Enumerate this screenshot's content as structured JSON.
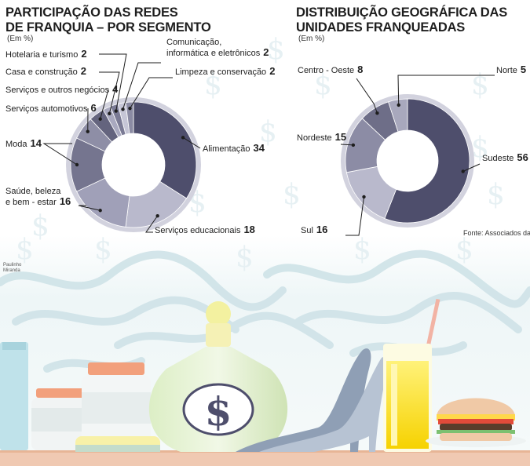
{
  "chart_data": [
    {
      "type": "pie",
      "title": "PARTICIPAÇÃO DAS REDES\nDE FRANQUIA – POR SEGMENTO",
      "subtitle": "(Em %)",
      "slices": [
        {
          "label": "Alimentação",
          "value": 34,
          "color": "#4e4e6c"
        },
        {
          "label": "Serviços educacionais",
          "value": 18,
          "color": "#b9b9cc"
        },
        {
          "label": "Saúde, beleza e bem-estar",
          "value": 16,
          "color": "#a0a0b8"
        },
        {
          "label": "Moda",
          "value": 14,
          "color": "#75758f"
        },
        {
          "label": "Serviços automotivos",
          "value": 6,
          "color": "#8e8ea6"
        },
        {
          "label": "Serviços e outros negócios",
          "value": 4,
          "color": "#64647e"
        },
        {
          "label": "Casa e construção",
          "value": 2,
          "color": "#a9a9bf"
        },
        {
          "label": "Hotelaria e turismo",
          "value": 2,
          "color": "#7b7b95"
        },
        {
          "label": "Comunicação, informática e eletrônicos",
          "value": 2,
          "color": "#c6c6d6"
        },
        {
          "label": "Limpeza e conservação",
          "value": 2,
          "color": "#8b8ba3"
        }
      ]
    },
    {
      "type": "pie",
      "title": "DISTRIBUIÇÃO GEOGRÁFICA DAS\nUNIDADES FRANQUEADAS",
      "subtitle": "(Em %)",
      "slices": [
        {
          "label": "Sudeste",
          "value": 56,
          "color": "#4e4e6c"
        },
        {
          "label": "Sul",
          "value": 16,
          "color": "#b9b9cc"
        },
        {
          "label": "Nordeste",
          "value": 15,
          "color": "#8c8ca5"
        },
        {
          "label": "Centro-Oeste",
          "value": 8,
          "color": "#6e6e88"
        },
        {
          "label": "Norte",
          "value": 5,
          "color": "#a8a8bd"
        }
      ]
    }
  ],
  "labels": {
    "hotelaria": {
      "name": "Hotelaria e turismo",
      "value": "2"
    },
    "casa": {
      "name": "Casa e construção",
      "value": "2"
    },
    "outros": {
      "name": "Serviços e outros negócios",
      "value": "4"
    },
    "automotivos": {
      "name": "Serviços automotivos",
      "value": "6"
    },
    "moda": {
      "name": "Moda",
      "value": "14"
    },
    "saude_1": {
      "name": "Saúde, beleza"
    },
    "saude_2": {
      "name": "e bem - estar",
      "value": "16"
    },
    "comunicacao_1": {
      "name": "Comunicação,"
    },
    "comunicacao_2": {
      "name": "informática e eletrônicos",
      "value": "2"
    },
    "limpeza": {
      "name": "Limpeza e conservação",
      "value": "2"
    },
    "alimentacao": {
      "name": "Alimentação",
      "value": "34"
    },
    "educacionais": {
      "name": "Serviços educacionais",
      "value": "18"
    },
    "centro_oeste": {
      "name": "Centro - Oeste",
      "value": "8"
    },
    "norte": {
      "name": "Norte",
      "value": "5"
    },
    "nordeste": {
      "name": "Nordeste",
      "value": "15"
    },
    "sudeste": {
      "name": "Sudeste",
      "value": "56"
    },
    "sul": {
      "name": "Sul",
      "value": "16"
    }
  },
  "source": "Fonte: Associados da ABF",
  "credit": {
    "line1": "Paulinho",
    "line2": "Miranda"
  },
  "bottle_symbol": "$",
  "colors": {
    "leader": "#1e1e1e",
    "dot": "#1e1e1e",
    "ring": "#d2d2de",
    "hole": "#ffffff"
  }
}
